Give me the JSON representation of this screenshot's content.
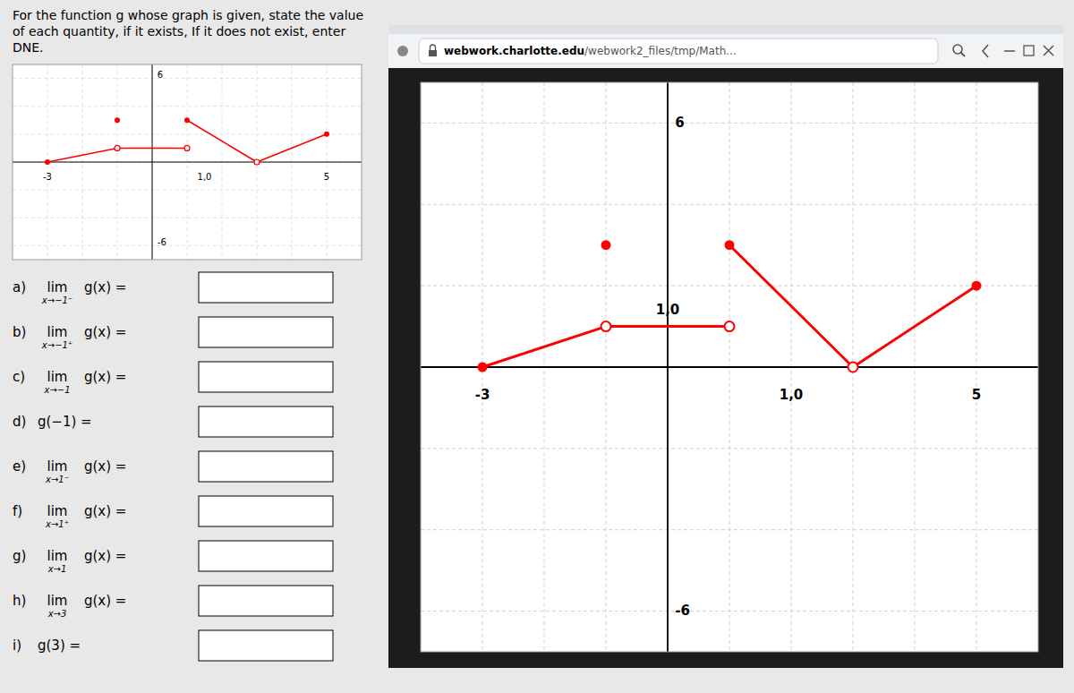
{
  "chart_data": [
    {
      "type": "line",
      "title": "For the function g whose graph is given, state the value of each quantity, if it exists, If it does not exist, enter DNE.",
      "xlim": [
        -4,
        6
      ],
      "ylim": [
        -7,
        7
      ],
      "xticks": [
        -3,
        -2,
        -1,
        0,
        1,
        2,
        3,
        4,
        5
      ],
      "yticks": [
        -6,
        -4,
        -2,
        0,
        2,
        4,
        6
      ],
      "grid": true,
      "tick_labels": false,
      "series": [
        {
          "x": [
            -3,
            -1
          ],
          "values": [
            0,
            1
          ],
          "color": "#ff0000"
        },
        {
          "x": [
            -1,
            1
          ],
          "values": [
            1,
            1
          ],
          "color": "#ff0000"
        },
        {
          "x": [
            1,
            3
          ],
          "values": [
            3,
            0
          ],
          "color": "#ff0000"
        },
        {
          "x": [
            3,
            5
          ],
          "values": [
            0,
            2
          ],
          "color": "#ff0000"
        },
        {
          "type": "scatter",
          "marker": "circle",
          "color": "#ff0000",
          "x": [
            -3,
            -1,
            1,
            5
          ],
          "values": [
            0,
            3,
            3,
            2
          ]
        },
        {
          "type": "scatter",
          "marker": "ring",
          "color": "#ff0000",
          "x": [
            -1,
            1,
            3
          ],
          "values": [
            1,
            1,
            0
          ]
        }
      ],
      "annotations": [
        {
          "text": "6",
          "x": 0.15,
          "y": 6.2
        },
        {
          "text": "-3",
          "x": -3.0,
          "y": -0.8
        },
        {
          "text": "1,0",
          "x": 1.5,
          "y": -0.8
        },
        {
          "text": "5",
          "x": 5.0,
          "y": -0.8
        },
        {
          "text": "-6",
          "x": 0.15,
          "y": -5.8
        }
      ],
      "questions": [
        {
          "label": "a)",
          "op": "lim",
          "sub": "x→−1⁻",
          "expr": "g(x) ="
        },
        {
          "label": "b)",
          "op": "lim",
          "sub": "x→−1⁺",
          "expr": "g(x) ="
        },
        {
          "label": "c)",
          "op": "lim",
          "sub": "x→−1",
          "expr": "g(x) ="
        },
        {
          "label": "d)",
          "expr": "g(−1) ="
        },
        {
          "label": "e)",
          "op": "lim",
          "sub": "x→1⁻",
          "expr": "g(x) ="
        },
        {
          "label": "f)",
          "op": "lim",
          "sub": "x→1⁺",
          "expr": "g(x) ="
        },
        {
          "label": "g)",
          "op": "lim",
          "sub": "x→1",
          "expr": "g(x) ="
        },
        {
          "label": "h)",
          "op": "lim",
          "sub": "x→3",
          "expr": "g(x) ="
        },
        {
          "label": "i)",
          "expr": "g(3) ="
        }
      ]
    },
    {
      "type": "line",
      "xlim": [
        -4,
        6
      ],
      "ylim": [
        -7,
        7
      ],
      "xticks": [
        -3,
        -2,
        -1,
        0,
        1,
        2,
        3,
        4,
        5
      ],
      "yticks": [
        -6,
        -4,
        -2,
        0,
        2,
        4,
        6
      ],
      "grid": true,
      "tick_labels": false,
      "series": [
        {
          "x": [
            -3,
            -1
          ],
          "values": [
            0,
            1
          ],
          "color": "#ff0000"
        },
        {
          "x": [
            -1,
            1
          ],
          "values": [
            1,
            1
          ],
          "color": "#ff0000"
        },
        {
          "x": [
            1,
            3
          ],
          "values": [
            3,
            0
          ],
          "color": "#ff0000"
        },
        {
          "x": [
            3,
            5
          ],
          "values": [
            0,
            2
          ],
          "color": "#ff0000"
        },
        {
          "type": "scatter",
          "marker": "circle",
          "color": "#ff0000",
          "x": [
            -3,
            -1,
            1,
            5
          ],
          "values": [
            0,
            3,
            3,
            2
          ]
        },
        {
          "type": "scatter",
          "marker": "ring",
          "color": "#ff0000",
          "x": [
            -1,
            1,
            3
          ],
          "values": [
            1,
            1,
            0
          ]
        }
      ],
      "annotations": [
        {
          "text": "6",
          "x": 0.12,
          "y": 6.0
        },
        {
          "text": "-6",
          "x": 0.12,
          "y": -6.0
        },
        {
          "text": "-3",
          "x": -3.0,
          "y": -0.55
        },
        {
          "text": "1,0",
          "x": 2.0,
          "y": -0.55
        },
        {
          "text": "1,0",
          "x": 0.0,
          "y": 1.25
        },
        {
          "text": "5",
          "x": 5.0,
          "y": -0.55
        }
      ],
      "url": [
        "webwork.charlotte.edu",
        "/webwork2_files/tmp/Math..."
      ]
    }
  ]
}
